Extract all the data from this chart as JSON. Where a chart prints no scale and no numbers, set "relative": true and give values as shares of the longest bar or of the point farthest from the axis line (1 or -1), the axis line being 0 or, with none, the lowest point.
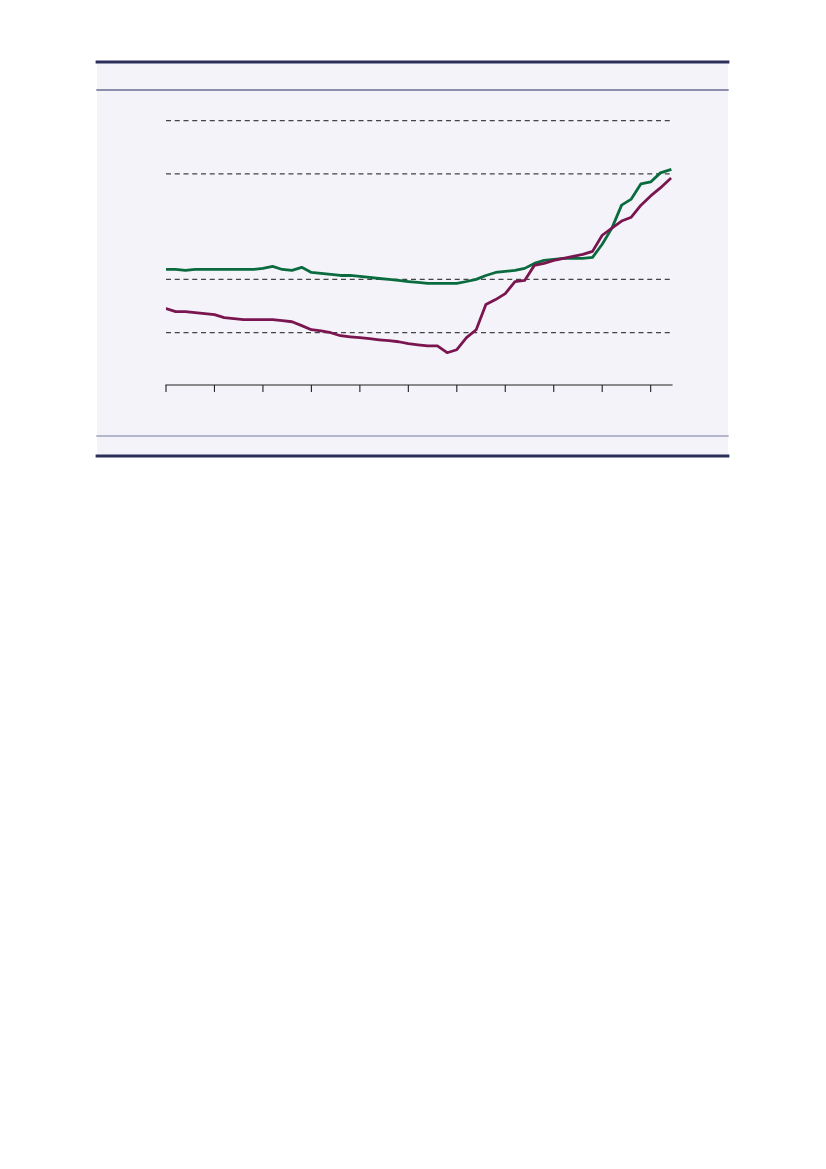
{
  "chart_data": {
    "type": "line",
    "relative": true,
    "categories": [
      null,
      null,
      null,
      null,
      null,
      null,
      null,
      null,
      null,
      null,
      null,
      null,
      null,
      null,
      null,
      null,
      null,
      null,
      null,
      null,
      null,
      null,
      null,
      null,
      null,
      null,
      null,
      null,
      null,
      null,
      null,
      null,
      null,
      null,
      null,
      null,
      null,
      null,
      null,
      null,
      null,
      null,
      null,
      null,
      null,
      null,
      null,
      null,
      null,
      null,
      null,
      null,
      null
    ],
    "series": [
      {
        "color": "#0a6b3f",
        "values": [
          0.537,
          0.537,
          0.533,
          0.537,
          0.537,
          0.537,
          0.537,
          0.537,
          0.537,
          0.537,
          0.542,
          0.551,
          0.537,
          0.533,
          0.547,
          0.523,
          0.519,
          0.514,
          0.509,
          0.509,
          0.505,
          0.5,
          0.495,
          0.491,
          0.486,
          0.481,
          0.477,
          0.472,
          0.472,
          0.472,
          0.472,
          0.481,
          0.491,
          0.509,
          0.523,
          0.528,
          0.533,
          0.542,
          0.565,
          0.579,
          0.584,
          0.589,
          0.589,
          0.589,
          0.593,
          0.654,
          0.729,
          0.836,
          0.864,
          0.935,
          0.944,
          0.986,
          1
        ]
      },
      {
        "color": "#7a1550",
        "values": [
          0.355,
          0.341,
          0.341,
          0.336,
          0.332,
          0.327,
          0.313,
          0.308,
          0.304,
          0.304,
          0.304,
          0.304,
          0.299,
          0.294,
          0.276,
          0.257,
          0.252,
          0.243,
          0.229,
          0.224,
          0.22,
          0.215,
          0.21,
          0.206,
          0.201,
          0.192,
          0.187,
          0.182,
          0.182,
          0.15,
          0.164,
          0.22,
          0.257,
          0.374,
          0.397,
          0.425,
          0.481,
          0.486,
          0.556,
          0.565,
          0.579,
          0.589,
          0.598,
          0.607,
          0.621,
          0.696,
          0.729,
          0.762,
          0.78,
          0.836,
          0.879,
          0.916,
          0.958
        ]
      }
    ],
    "ref_lines": [
      {
        "axis": "y",
        "value": 1.229,
        "color": "#444444",
        "line_style": "dashed"
      },
      {
        "axis": "y",
        "value": 0.981,
        "color": "#444444",
        "line_style": "dashed"
      },
      {
        "axis": "y",
        "value": 0.491,
        "color": "#444444",
        "line_style": "dashed"
      },
      {
        "axis": "y",
        "value": 0.243,
        "color": "#444444",
        "line_style": "dashed"
      }
    ],
    "grid": false,
    "marker": "none",
    "line_style": "solid"
  }
}
